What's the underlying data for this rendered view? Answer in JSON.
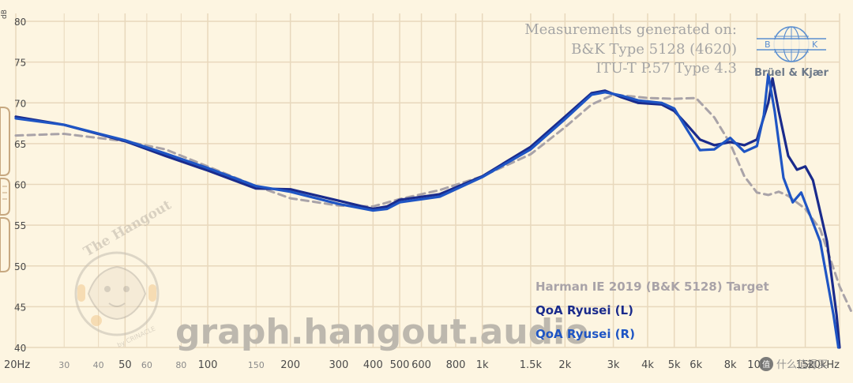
{
  "chart_data": {
    "type": "line",
    "x_scale": "log",
    "xlim": [
      20,
      20000
    ],
    "ylim": [
      40,
      80
    ],
    "grid": true,
    "legend_position": "bottom-right",
    "y_unit_label": "dB",
    "x_ticks": [
      {
        "v": 20,
        "label": "20Hz",
        "major": true
      },
      {
        "v": 30,
        "label": "30",
        "major": false
      },
      {
        "v": 40,
        "label": "40",
        "major": false
      },
      {
        "v": 50,
        "label": "50",
        "major": true
      },
      {
        "v": 60,
        "label": "60",
        "major": false
      },
      {
        "v": 80,
        "label": "80",
        "major": false
      },
      {
        "v": 100,
        "label": "100",
        "major": true
      },
      {
        "v": 150,
        "label": "150",
        "major": false
      },
      {
        "v": 200,
        "label": "200",
        "major": true
      },
      {
        "v": 300,
        "label": "300",
        "major": true
      },
      {
        "v": 400,
        "label": "400",
        "major": true
      },
      {
        "v": 500,
        "label": "500",
        "major": true
      },
      {
        "v": 600,
        "label": "600",
        "major": true
      },
      {
        "v": 800,
        "label": "800",
        "major": true
      },
      {
        "v": 1000,
        "label": "1k",
        "major": true
      },
      {
        "v": 1500,
        "label": "1.5k",
        "major": true
      },
      {
        "v": 2000,
        "label": "2k",
        "major": true
      },
      {
        "v": 3000,
        "label": "3k",
        "major": true
      },
      {
        "v": 4000,
        "label": "4k",
        "major": true
      },
      {
        "v": 5000,
        "label": "5k",
        "major": true
      },
      {
        "v": 6000,
        "label": "6k",
        "major": true
      },
      {
        "v": 8000,
        "label": "8k",
        "major": true
      },
      {
        "v": 10000,
        "label": "10k",
        "major": true
      },
      {
        "v": 15000,
        "label": "15k",
        "major": true
      },
      {
        "v": 20000,
        "label": "20kHz",
        "major": true
      }
    ],
    "y_ticks": [
      40,
      45,
      50,
      55,
      60,
      65,
      70,
      75,
      80
    ],
    "series": [
      {
        "name": "Harman IE 2019 (B&K 5128) Target",
        "color": "#a9a3a8",
        "dash": true,
        "points": [
          [
            20,
            66.0
          ],
          [
            30,
            66.2
          ],
          [
            50,
            65.3
          ],
          [
            70,
            64.3
          ],
          [
            100,
            62.2
          ],
          [
            150,
            59.8
          ],
          [
            200,
            58.3
          ],
          [
            300,
            57.4
          ],
          [
            400,
            57.3
          ],
          [
            500,
            58.2
          ],
          [
            700,
            59.3
          ],
          [
            1000,
            61.0
          ],
          [
            1500,
            63.7
          ],
          [
            2000,
            67.0
          ],
          [
            2500,
            69.8
          ],
          [
            3000,
            71.0
          ],
          [
            3500,
            70.8
          ],
          [
            4000,
            70.6
          ],
          [
            5000,
            70.5
          ],
          [
            6000,
            70.6
          ],
          [
            7000,
            68.2
          ],
          [
            8000,
            65.0
          ],
          [
            9000,
            61.0
          ],
          [
            10000,
            59.0
          ],
          [
            11000,
            58.7
          ],
          [
            12000,
            59.1
          ],
          [
            13000,
            58.6
          ],
          [
            15000,
            57.0
          ],
          [
            17000,
            54.5
          ],
          [
            20000,
            47.5
          ],
          [
            22000,
            44.5
          ]
        ]
      },
      {
        "name": "QoA Ryusei (L)",
        "color": "#1a2b8c",
        "dash": false,
        "points": [
          [
            20,
            68.3
          ],
          [
            30,
            67.3
          ],
          [
            50,
            65.3
          ],
          [
            70,
            63.5
          ],
          [
            100,
            61.7
          ],
          [
            150,
            59.5
          ],
          [
            200,
            59.4
          ],
          [
            300,
            58.0
          ],
          [
            400,
            57.0
          ],
          [
            450,
            57.3
          ],
          [
            500,
            58.1
          ],
          [
            700,
            58.8
          ],
          [
            1000,
            61.0
          ],
          [
            1500,
            64.6
          ],
          [
            2000,
            68.3
          ],
          [
            2500,
            71.2
          ],
          [
            2800,
            71.5
          ],
          [
            3200,
            70.7
          ],
          [
            3700,
            70.0
          ],
          [
            4500,
            69.8
          ],
          [
            5000,
            69.0
          ],
          [
            5500,
            67.5
          ],
          [
            6200,
            65.5
          ],
          [
            7000,
            64.8
          ],
          [
            8000,
            65.2
          ],
          [
            9000,
            64.8
          ],
          [
            10000,
            65.5
          ],
          [
            11000,
            70.0
          ],
          [
            11400,
            73.0
          ],
          [
            12000,
            69.0
          ],
          [
            13000,
            63.5
          ],
          [
            14000,
            61.8
          ],
          [
            15000,
            62.2
          ],
          [
            16000,
            60.5
          ],
          [
            18000,
            53.0
          ],
          [
            19500,
            44.0
          ],
          [
            20000,
            40.0
          ]
        ]
      },
      {
        "name": "QoA Ryusei (R)",
        "color": "#1f55c4",
        "dash": false,
        "points": [
          [
            20,
            68.1
          ],
          [
            30,
            67.3
          ],
          [
            50,
            65.4
          ],
          [
            70,
            63.8
          ],
          [
            100,
            62.0
          ],
          [
            150,
            59.8
          ],
          [
            200,
            59.1
          ],
          [
            300,
            57.6
          ],
          [
            400,
            56.8
          ],
          [
            450,
            57.0
          ],
          [
            500,
            57.8
          ],
          [
            700,
            58.5
          ],
          [
            1000,
            60.9
          ],
          [
            1500,
            64.3
          ],
          [
            2000,
            68.0
          ],
          [
            2500,
            71.0
          ],
          [
            2800,
            71.3
          ],
          [
            3200,
            70.9
          ],
          [
            3700,
            70.3
          ],
          [
            4500,
            70.0
          ],
          [
            5000,
            69.3
          ],
          [
            5500,
            67.0
          ],
          [
            6200,
            64.2
          ],
          [
            7000,
            64.3
          ],
          [
            8000,
            65.7
          ],
          [
            9000,
            64.0
          ],
          [
            10000,
            64.7
          ],
          [
            10600,
            68.5
          ],
          [
            11000,
            73.5
          ],
          [
            11600,
            69.0
          ],
          [
            12500,
            60.8
          ],
          [
            13500,
            57.8
          ],
          [
            14500,
            59.0
          ],
          [
            15500,
            56.5
          ],
          [
            17000,
            53.0
          ],
          [
            19000,
            44.0
          ],
          [
            19800,
            40.0
          ]
        ]
      }
    ]
  },
  "annotations": {
    "measurement_lines": [
      "Measurements generated on:",
      "B&K Type 5128 (4620)",
      "ITU-T P.57 Type 4.3"
    ],
    "brand_name": "Brüel & Kjær",
    "brand_letter_b": "B",
    "brand_letter_k": "K",
    "watermark": "graph.hangout.audio",
    "site_logo_text": "The Hangout",
    "site_logo_by": "by CRINACLE",
    "corner_badge": "值 什么值得买"
  },
  "colors": {
    "background": "#fdf5e1",
    "grid": "#e8d8bc",
    "handle": "#c7a880"
  }
}
